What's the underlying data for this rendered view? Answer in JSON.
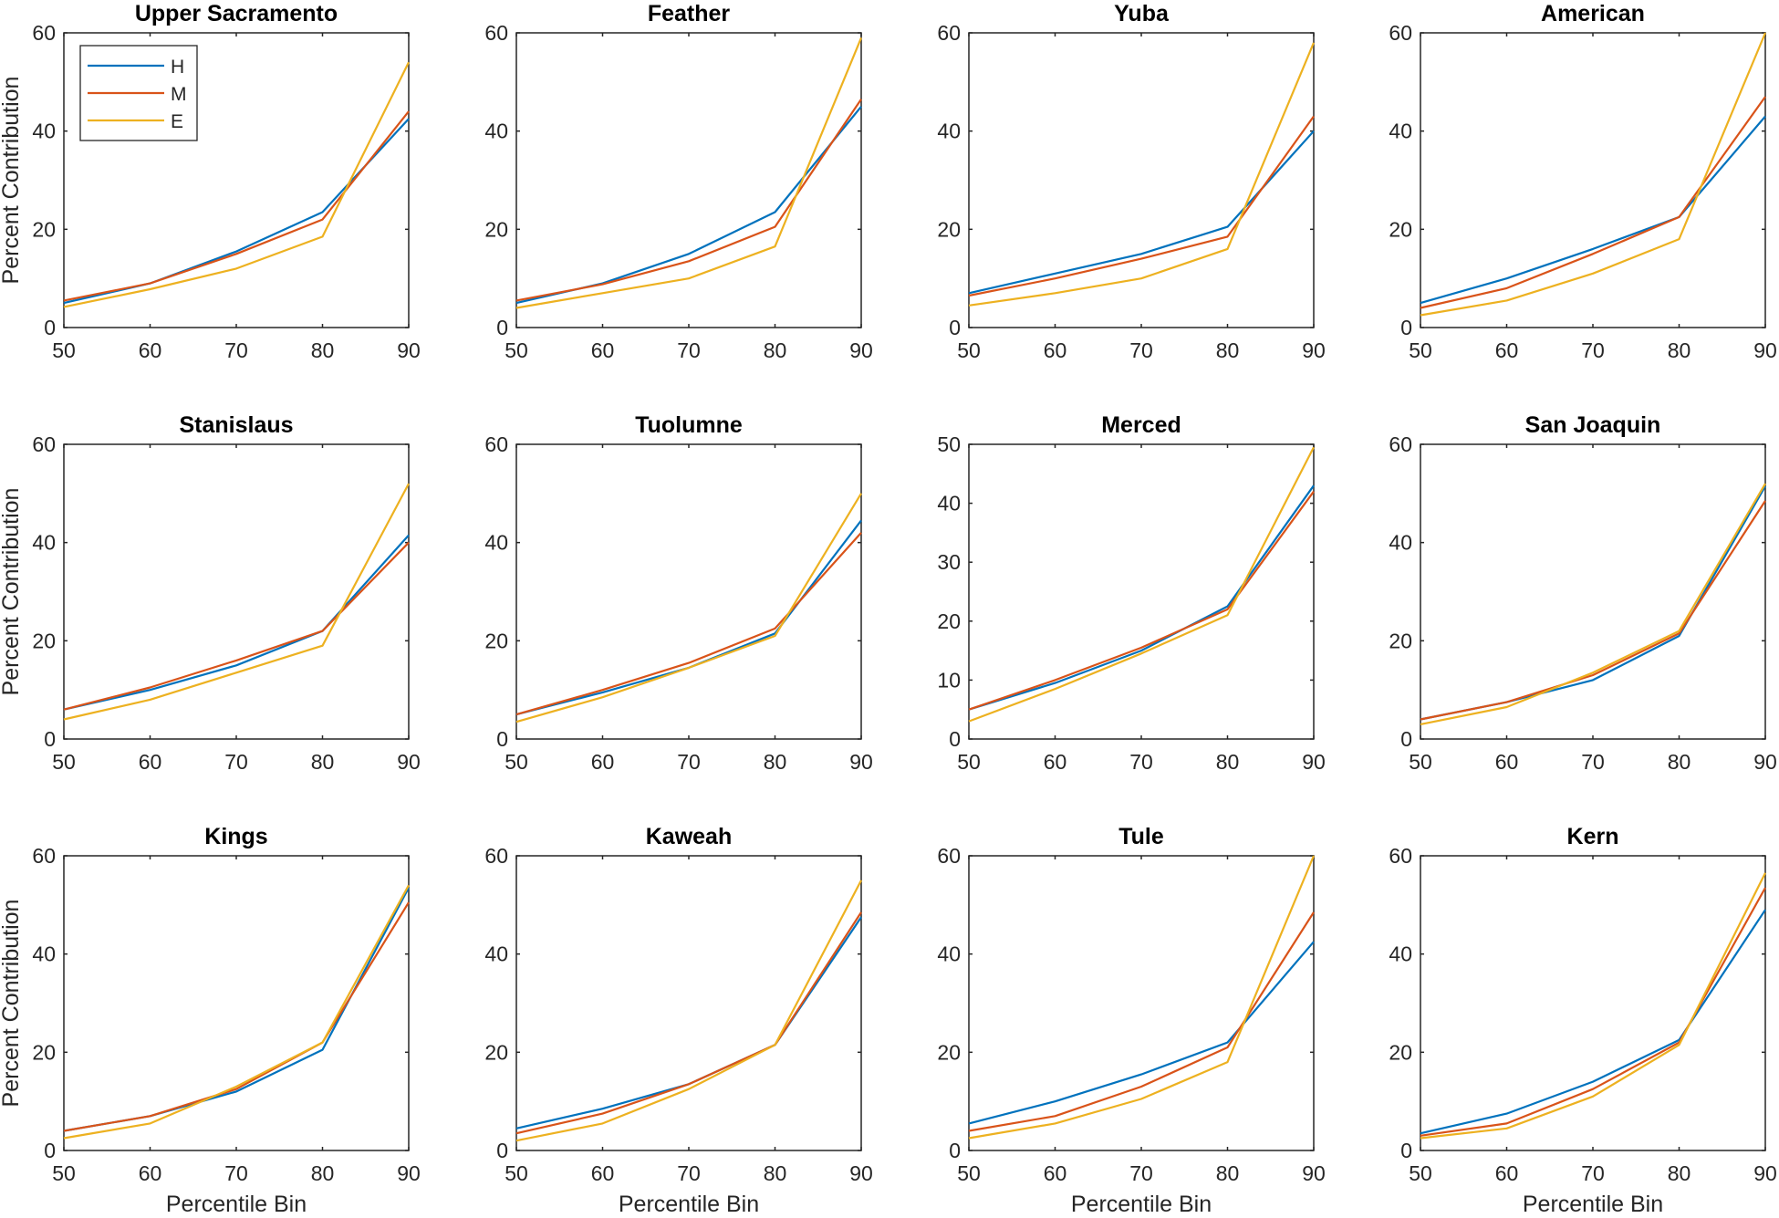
{
  "chart_data": {
    "type": "line",
    "layout": "3x4 small multiples",
    "xlabel": "Percentile Bin",
    "ylabel": "Percent Contribution",
    "x": [
      50,
      60,
      70,
      80,
      90
    ],
    "series_names": [
      "H",
      "M",
      "E"
    ],
    "colors": {
      "H": "#0072bd",
      "M": "#d95319",
      "E": "#edb120"
    },
    "legend": {
      "entries": [
        "H",
        "M",
        "E"
      ],
      "placement": "top-left of first panel"
    },
    "panels": [
      {
        "title": "Upper Sacramento",
        "ylim": [
          0,
          60
        ],
        "yticks": [
          0,
          20,
          40,
          60
        ],
        "series": [
          {
            "name": "H",
            "values": [
              5.0,
              9.0,
              15.5,
              23.5,
              42.5
            ]
          },
          {
            "name": "M",
            "values": [
              5.5,
              9.0,
              15.0,
              22.0,
              44.0
            ]
          },
          {
            "name": "E",
            "values": [
              4.2,
              7.8,
              12.0,
              18.5,
              54.0
            ]
          }
        ]
      },
      {
        "title": "Feather",
        "ylim": [
          0,
          60
        ],
        "yticks": [
          0,
          20,
          40,
          60
        ],
        "series": [
          {
            "name": "H",
            "values": [
              5.0,
              9.0,
              15.0,
              23.5,
              45.0
            ]
          },
          {
            "name": "M",
            "values": [
              5.5,
              8.8,
              13.5,
              20.5,
              46.5
            ]
          },
          {
            "name": "E",
            "values": [
              4.0,
              7.0,
              10.0,
              16.5,
              59.0
            ]
          }
        ]
      },
      {
        "title": "Yuba",
        "ylim": [
          0,
          60
        ],
        "yticks": [
          0,
          20,
          40,
          60
        ],
        "series": [
          {
            "name": "H",
            "values": [
              7.0,
              11.0,
              15.0,
              20.5,
              40.0
            ]
          },
          {
            "name": "M",
            "values": [
              6.5,
              10.0,
              14.0,
              18.5,
              43.0
            ]
          },
          {
            "name": "E",
            "values": [
              4.5,
              7.0,
              10.0,
              16.0,
              58.0
            ]
          }
        ]
      },
      {
        "title": "American",
        "ylim": [
          0,
          60
        ],
        "yticks": [
          0,
          20,
          40,
          60
        ],
        "series": [
          {
            "name": "H",
            "values": [
              5.0,
              10.0,
              16.0,
              22.5,
              43.0
            ]
          },
          {
            "name": "M",
            "values": [
              4.0,
              8.0,
              15.0,
              22.5,
              47.0
            ]
          },
          {
            "name": "E",
            "values": [
              2.5,
              5.5,
              11.0,
              18.0,
              60.0
            ]
          }
        ]
      },
      {
        "title": "Stanislaus",
        "ylim": [
          0,
          60
        ],
        "yticks": [
          0,
          20,
          40,
          60
        ],
        "series": [
          {
            "name": "H",
            "values": [
              6.0,
              10.0,
              15.0,
              22.0,
              41.5
            ]
          },
          {
            "name": "M",
            "values": [
              6.0,
              10.5,
              16.0,
              22.0,
              40.0
            ]
          },
          {
            "name": "E",
            "values": [
              4.0,
              8.0,
              13.5,
              19.0,
              52.0
            ]
          }
        ]
      },
      {
        "title": "Tuolumne",
        "ylim": [
          0,
          60
        ],
        "yticks": [
          0,
          20,
          40,
          60
        ],
        "series": [
          {
            "name": "H",
            "values": [
              5.0,
              9.5,
              14.5,
              21.5,
              44.5
            ]
          },
          {
            "name": "M",
            "values": [
              5.0,
              10.0,
              15.5,
              22.5,
              42.0
            ]
          },
          {
            "name": "E",
            "values": [
              3.5,
              8.5,
              14.5,
              21.0,
              50.0
            ]
          }
        ]
      },
      {
        "title": "Merced",
        "ylim": [
          0,
          50
        ],
        "yticks": [
          0,
          10,
          20,
          30,
          40,
          50
        ],
        "series": [
          {
            "name": "H",
            "values": [
              5.0,
              9.5,
              15.0,
              22.5,
              43.0
            ]
          },
          {
            "name": "M",
            "values": [
              5.0,
              10.0,
              15.5,
              22.0,
              42.0
            ]
          },
          {
            "name": "E",
            "values": [
              3.0,
              8.5,
              14.5,
              21.0,
              49.5
            ]
          }
        ]
      },
      {
        "title": "San Joaquin",
        "ylim": [
          0,
          60
        ],
        "yticks": [
          0,
          20,
          40,
          60
        ],
        "series": [
          {
            "name": "H",
            "values": [
              4.0,
              7.5,
              12.0,
              21.0,
              51.5
            ]
          },
          {
            "name": "M",
            "values": [
              4.0,
              7.5,
              13.0,
              21.5,
              48.5
            ]
          },
          {
            "name": "E",
            "values": [
              3.0,
              6.5,
              13.5,
              22.0,
              52.0
            ]
          }
        ]
      },
      {
        "title": "Kings",
        "ylim": [
          0,
          60
        ],
        "yticks": [
          0,
          20,
          40,
          60
        ],
        "series": [
          {
            "name": "H",
            "values": [
              4.0,
              7.0,
              12.0,
              20.5,
              53.5
            ]
          },
          {
            "name": "M",
            "values": [
              4.0,
              7.0,
              12.5,
              22.0,
              50.5
            ]
          },
          {
            "name": "E",
            "values": [
              2.5,
              5.5,
              13.0,
              22.0,
              54.0
            ]
          }
        ]
      },
      {
        "title": "Kaweah",
        "ylim": [
          0,
          60
        ],
        "yticks": [
          0,
          20,
          40,
          60
        ],
        "series": [
          {
            "name": "H",
            "values": [
              4.5,
              8.5,
              13.5,
              21.5,
              47.5
            ]
          },
          {
            "name": "M",
            "values": [
              3.5,
              7.5,
              13.5,
              21.5,
              48.5
            ]
          },
          {
            "name": "E",
            "values": [
              2.0,
              5.5,
              12.5,
              21.5,
              55.0
            ]
          }
        ]
      },
      {
        "title": "Tule",
        "ylim": [
          0,
          60
        ],
        "yticks": [
          0,
          20,
          40,
          60
        ],
        "series": [
          {
            "name": "H",
            "values": [
              5.5,
              10.0,
              15.5,
              22.0,
              42.5
            ]
          },
          {
            "name": "M",
            "values": [
              4.0,
              7.0,
              13.0,
              21.0,
              48.5
            ]
          },
          {
            "name": "E",
            "values": [
              2.5,
              5.5,
              10.5,
              18.0,
              60.0
            ]
          }
        ]
      },
      {
        "title": "Kern",
        "ylim": [
          0,
          60
        ],
        "yticks": [
          0,
          20,
          40,
          60
        ],
        "series": [
          {
            "name": "H",
            "values": [
              3.5,
              7.5,
              14.0,
              22.5,
              49.0
            ]
          },
          {
            "name": "M",
            "values": [
              3.0,
              5.5,
              12.5,
              22.0,
              53.5
            ]
          },
          {
            "name": "E",
            "values": [
              2.5,
              4.5,
              11.0,
              21.5,
              56.5
            ]
          }
        ]
      }
    ]
  }
}
